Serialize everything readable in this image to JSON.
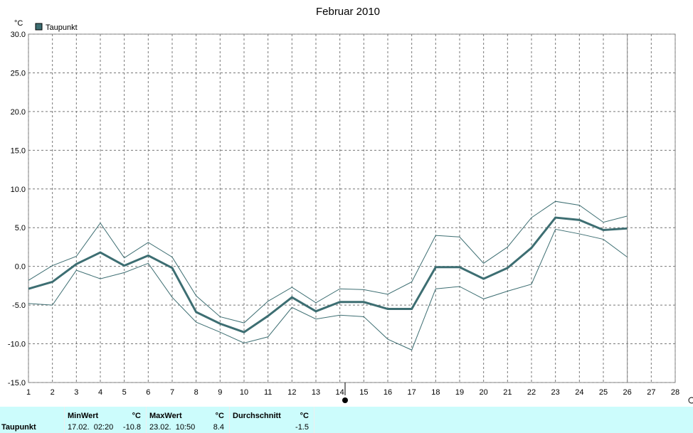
{
  "chart_data": {
    "type": "line",
    "title": "Februar 2010",
    "y_unit": "°C",
    "x": [
      1,
      2,
      3,
      4,
      5,
      6,
      7,
      8,
      9,
      10,
      11,
      12,
      13,
      14,
      15,
      16,
      17,
      18,
      19,
      20,
      21,
      22,
      23,
      24,
      25,
      26
    ],
    "series": [
      {
        "name": "Taupunkt",
        "color": "#3d6e72",
        "line_width": 3,
        "values": [
          -2.9,
          -2.0,
          0.3,
          1.8,
          0.1,
          1.4,
          -0.2,
          -5.9,
          -7.4,
          -8.5,
          -6.4,
          -4.0,
          -5.8,
          -4.6,
          -4.6,
          -5.5,
          -5.5,
          -0.1,
          -0.1,
          -1.6,
          -0.2,
          2.4,
          6.3,
          6.0,
          4.7,
          4.9
        ]
      },
      {
        "color": "#3d6e72",
        "line_width": 1,
        "values": [
          -1.8,
          0.1,
          1.3,
          5.6,
          1.1,
          3.1,
          1.2,
          -3.8,
          -6.5,
          -7.3,
          -4.5,
          -2.7,
          -4.7,
          -2.9,
          -3.0,
          -3.6,
          -2.0,
          4.0,
          3.8,
          0.4,
          2.5,
          6.3,
          8.4,
          7.9,
          5.7,
          6.5
        ]
      },
      {
        "color": "#3d6e72",
        "line_width": 1,
        "values": [
          -4.8,
          -5.0,
          -0.5,
          -1.6,
          -0.8,
          0.4,
          -4.0,
          -7.2,
          -8.5,
          -9.9,
          -9.1,
          -5.3,
          -6.8,
          -6.3,
          -6.5,
          -9.4,
          -10.8,
          -2.9,
          -2.6,
          -4.2,
          -3.2,
          -2.3,
          4.8,
          4.2,
          3.5,
          1.2
        ]
      }
    ],
    "xlim": [
      1,
      28
    ],
    "xticks": [
      1,
      2,
      3,
      4,
      5,
      6,
      7,
      8,
      9,
      10,
      11,
      12,
      13,
      14,
      15,
      16,
      17,
      18,
      19,
      20,
      21,
      22,
      23,
      24,
      25,
      26,
      27,
      28
    ],
    "ylim": [
      -15,
      30
    ],
    "yticks": [
      {
        "value": -15,
        "label": "-15.0"
      },
      {
        "value": -10,
        "label": "-10.0"
      },
      {
        "value": -5,
        "label": "-5.0"
      },
      {
        "value": 0,
        "label": "0.0"
      },
      {
        "value": 5,
        "label": "5.0"
      },
      {
        "value": 10,
        "label": "10.0"
      },
      {
        "value": 15,
        "label": "15.0"
      },
      {
        "value": 20,
        "label": "20.0"
      },
      {
        "value": 25,
        "label": "25.0"
      },
      {
        "value": 30,
        "label": "30.0"
      }
    ],
    "grid": true,
    "legend": "top-left"
  },
  "table": {
    "row_label": "Taupunkt",
    "columns": [
      {
        "header": "MinWert",
        "unit": "°C",
        "time": "17.02.  02:20",
        "value": "-10.8"
      },
      {
        "header": "MaxWert",
        "unit": "°C",
        "time": "23.02.  10:50",
        "value": "8.4"
      },
      {
        "header": "Durchschnitt",
        "unit": "°C",
        "time": "",
        "value": "-1.5"
      }
    ]
  }
}
